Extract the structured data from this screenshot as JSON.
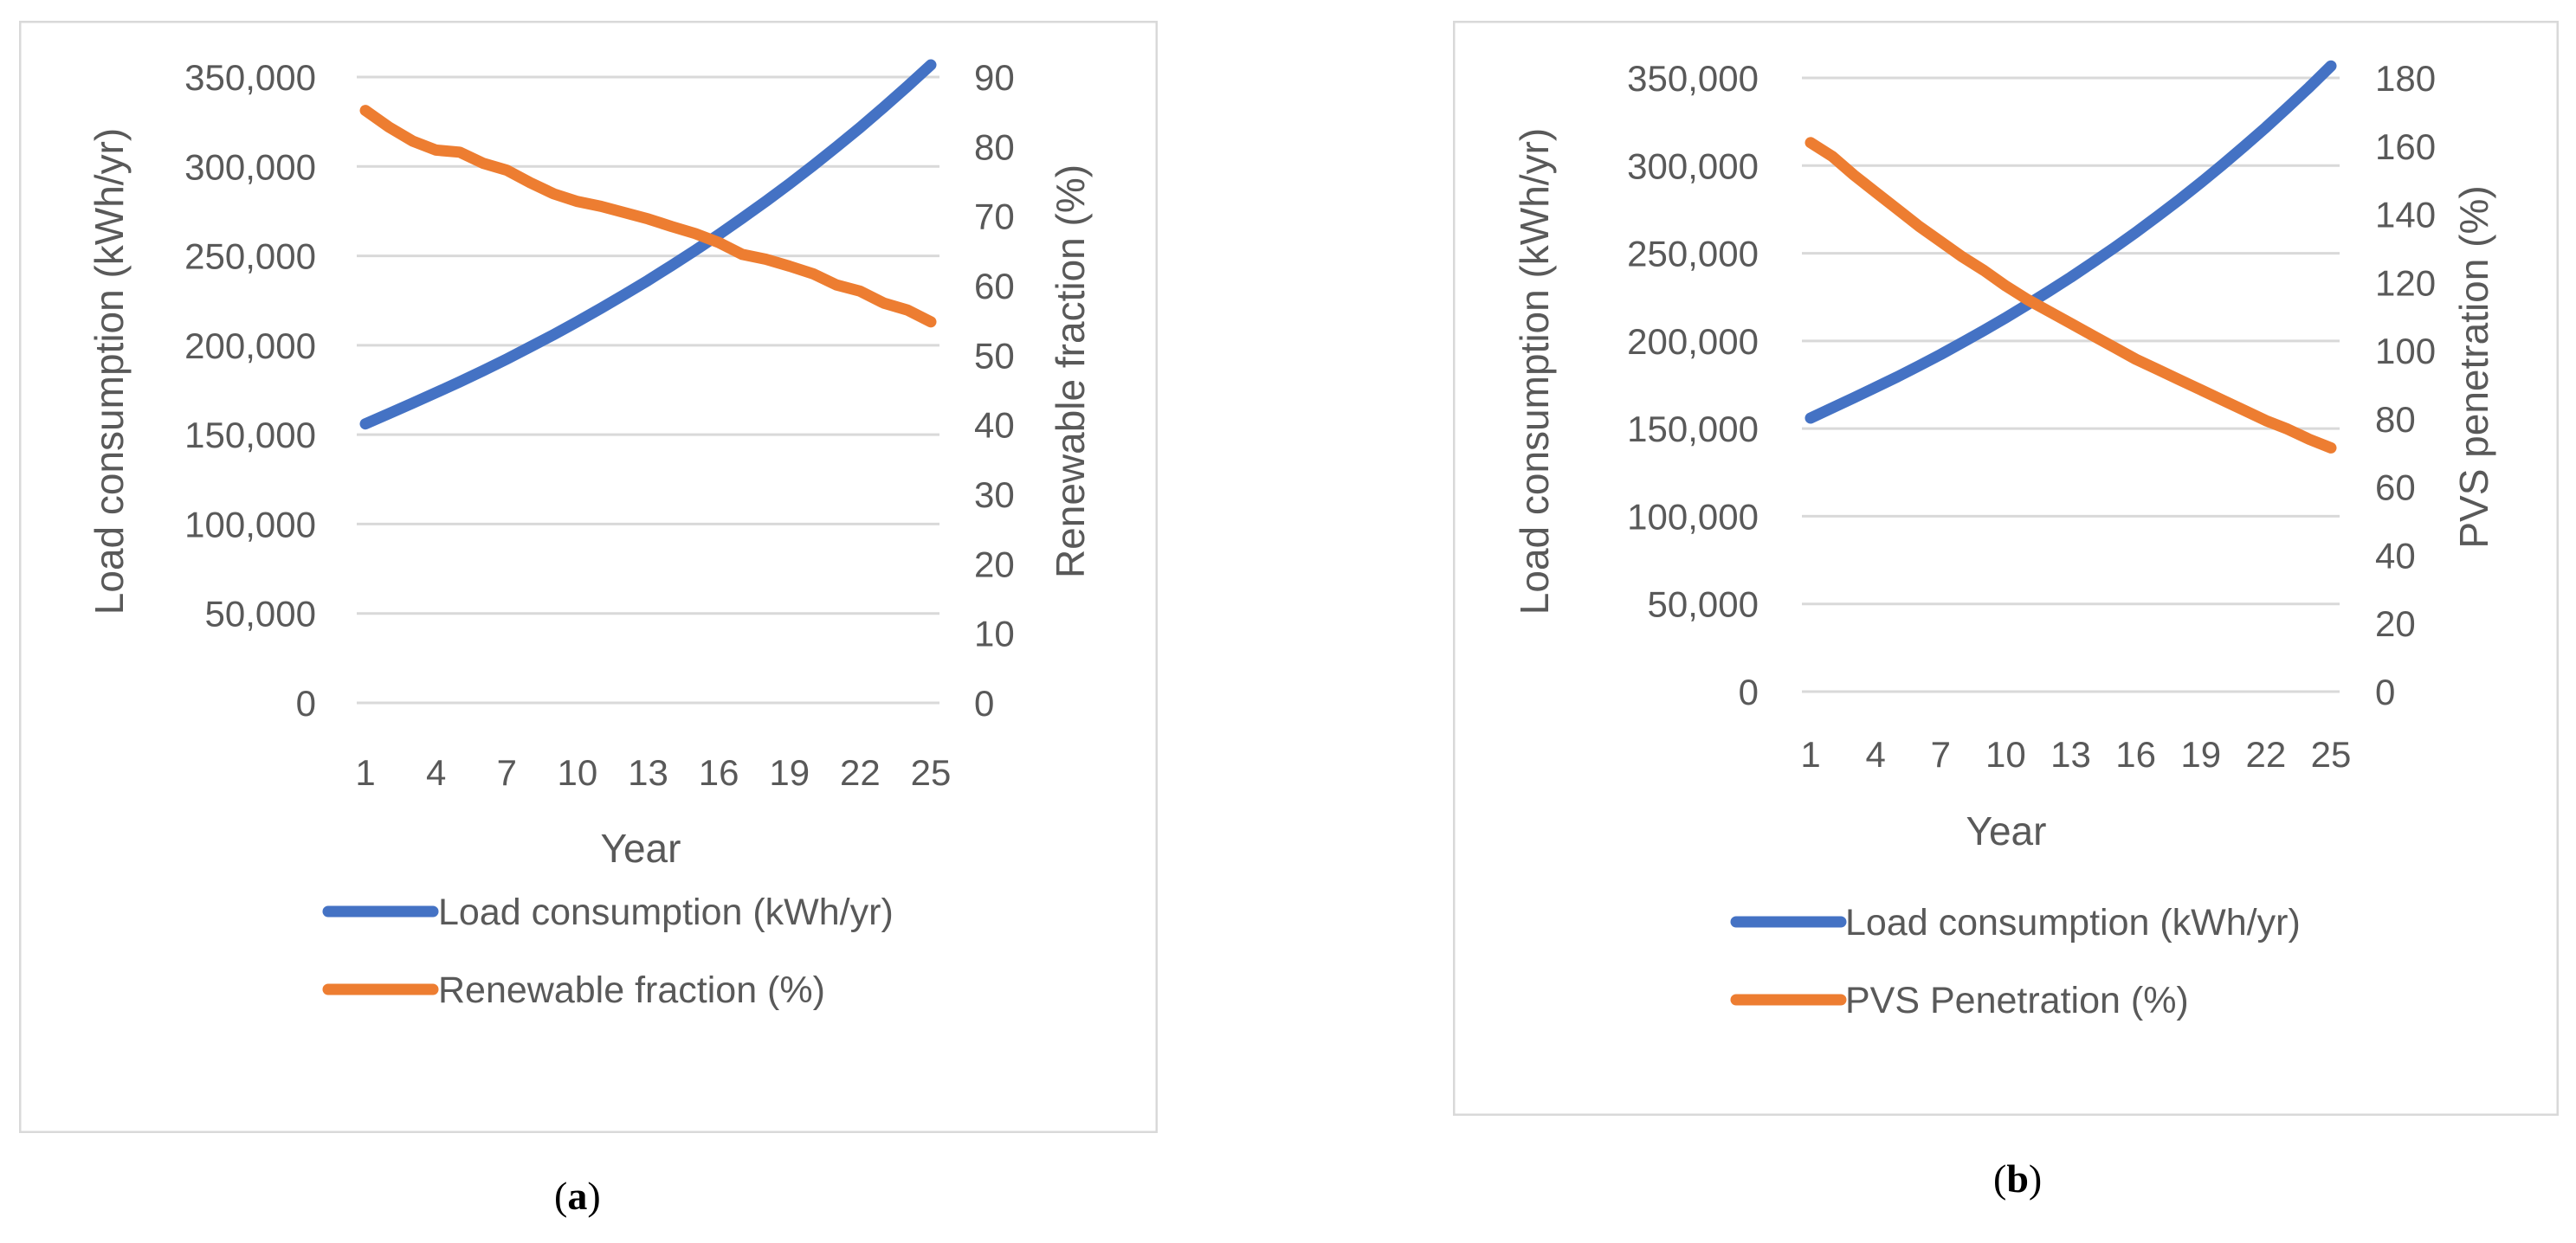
{
  "colors": {
    "series_load": "#4472C4",
    "series_secondary": "#ED7D31",
    "grid": "#D9D9D9",
    "frame": "#D9D9D9",
    "text": "#595959"
  },
  "chart_data": [
    {
      "type": "line",
      "caption_letter": "a",
      "xlabel": "Year",
      "ylabel_left": "Load consumption (kWh/yr)",
      "ylabel_right": "Renewable fraction (%)",
      "ylim_left": [
        0,
        350000
      ],
      "ylim_right": [
        0,
        90
      ],
      "yticks_left": [
        "0",
        "50,000",
        "100,000",
        "150,000",
        "200,000",
        "250,000",
        "300,000",
        "350,000"
      ],
      "yticks_right": [
        "0",
        "10",
        "20",
        "30",
        "40",
        "50",
        "60",
        "70",
        "80",
        "90"
      ],
      "xticks": [
        "1",
        "4",
        "7",
        "10",
        "13",
        "16",
        "19",
        "22",
        "25"
      ],
      "x": [
        1,
        2,
        3,
        4,
        5,
        6,
        7,
        8,
        9,
        10,
        11,
        12,
        13,
        14,
        15,
        16,
        17,
        18,
        19,
        20,
        21,
        22,
        23,
        24,
        25
      ],
      "series": [
        {
          "name": "Load consumption (kWh/yr)",
          "axis": "left",
          "values": [
            156000,
            161800,
            167600,
            173500,
            179500,
            185800,
            192300,
            199100,
            206000,
            213200,
            220700,
            228400,
            236300,
            244600,
            253100,
            261900,
            271100,
            280500,
            290300,
            300500,
            311000,
            321800,
            333100,
            344700,
            356800
          ]
        },
        {
          "name": "Renewable fraction (%)",
          "axis": "right",
          "values": [
            85.2,
            82.8,
            80.8,
            79.5,
            79.2,
            77.6,
            76.6,
            74.8,
            73.2,
            72.1,
            71.4,
            70.5,
            69.6,
            68.5,
            67.5,
            66.2,
            64.5,
            63.8,
            62.8,
            61.7,
            60.1,
            59.2,
            57.5,
            56.5,
            54.8
          ]
        }
      ]
    },
    {
      "type": "line",
      "caption_letter": "b",
      "xlabel": "Year",
      "ylabel_left": "Load consumption (kWh/yr)",
      "ylabel_right": "PVS penetration (%)",
      "ylim_left": [
        0,
        350000
      ],
      "ylim_right": [
        0,
        180
      ],
      "yticks_left": [
        "0",
        "50,000",
        "100,000",
        "150,000",
        "200,000",
        "250,000",
        "300,000",
        "350,000"
      ],
      "yticks_right": [
        "0",
        "20",
        "40",
        "60",
        "80",
        "100",
        "120",
        "140",
        "160",
        "180"
      ],
      "xticks": [
        "1",
        "4",
        "7",
        "10",
        "13",
        "16",
        "19",
        "22",
        "25"
      ],
      "x": [
        1,
        2,
        3,
        4,
        5,
        6,
        7,
        8,
        9,
        10,
        11,
        12,
        13,
        14,
        15,
        16,
        17,
        18,
        19,
        20,
        21,
        22,
        23,
        24,
        25
      ],
      "series": [
        {
          "name": "Load consumption (kWh/yr)",
          "axis": "left",
          "values": [
            156000,
            161800,
            167600,
            173500,
            179500,
            185800,
            192300,
            199100,
            206000,
            213200,
            220700,
            228400,
            236300,
            244600,
            253100,
            261900,
            271100,
            280500,
            290300,
            300500,
            311000,
            321800,
            333100,
            344700,
            356800
          ]
        },
        {
          "name": "PVS Penetration (%)",
          "axis": "right",
          "values": [
            161,
            157,
            151.5,
            146.5,
            141.5,
            136.5,
            132,
            127.5,
            123.5,
            119,
            115,
            111.5,
            108,
            104.5,
            101,
            97.5,
            94.5,
            91.5,
            88.5,
            85.5,
            82.5,
            79.5,
            77,
            74,
            71.5
          ]
        }
      ]
    }
  ]
}
